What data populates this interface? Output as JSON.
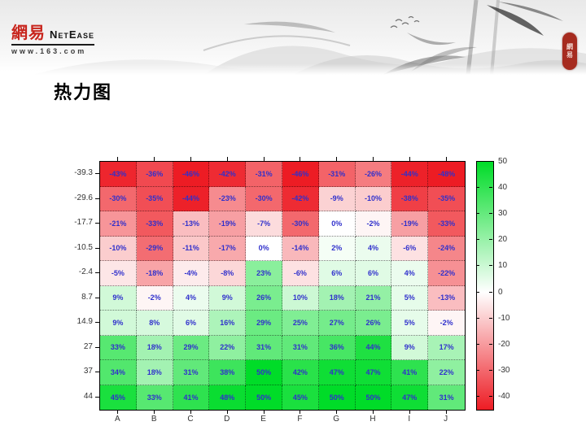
{
  "slide": {
    "title": "热力图"
  },
  "header": {
    "logo": {
      "cn": "網易",
      "en": "NetEase",
      "url": "www.163.com",
      "cn_color": "#c8251d"
    },
    "seal_text": "網易",
    "seal_color": "#a62b1f"
  },
  "chart_data": {
    "type": "heatmap",
    "title": "热力图",
    "x_categories": [
      "A",
      "B",
      "C",
      "D",
      "E",
      "F",
      "G",
      "H",
      "I",
      "J"
    ],
    "y_categories": [
      "-39.3",
      "-29.6",
      "-17.7",
      "-10.5",
      "-2.4",
      "8.7",
      "14.9",
      "27",
      "37",
      "44"
    ],
    "values": [
      [
        -43,
        -36,
        -46,
        -42,
        -31,
        -46,
        -31,
        -26,
        -44,
        -48
      ],
      [
        -30,
        -35,
        -44,
        -23,
        -30,
        -42,
        -9,
        -10,
        -38,
        -35
      ],
      [
        -21,
        -33,
        -13,
        -19,
        -7,
        -30,
        0,
        -2,
        -19,
        -33
      ],
      [
        -10,
        -29,
        -11,
        -17,
        0,
        -14,
        2,
        4,
        -6,
        -24
      ],
      [
        -5,
        -18,
        -4,
        -8,
        23,
        -6,
        6,
        6,
        4,
        -22
      ],
      [
        9,
        -2,
        4,
        9,
        26,
        10,
        18,
        21,
        5,
        -13
      ],
      [
        9,
        8,
        6,
        16,
        29,
        25,
        27,
        26,
        5,
        -2
      ],
      [
        33,
        18,
        29,
        22,
        31,
        31,
        36,
        44,
        9,
        17
      ],
      [
        34,
        18,
        31,
        38,
        50,
        42,
        47,
        47,
        41,
        22
      ],
      [
        45,
        33,
        41,
        48,
        50,
        45,
        50,
        50,
        47,
        31
      ]
    ],
    "value_suffix": "%",
    "cell_text_color": "#3030cc",
    "grid_line": "dotted",
    "legend_position": "right",
    "colorbar": {
      "ticks": [
        50,
        40,
        30,
        20,
        10,
        0,
        -10,
        -20,
        -30,
        -40
      ],
      "top_value": 50,
      "bottom_value": -45,
      "positive_color": "#00dc28",
      "zero_color": "#ffffff",
      "negative_color": "#ed1c24"
    }
  }
}
